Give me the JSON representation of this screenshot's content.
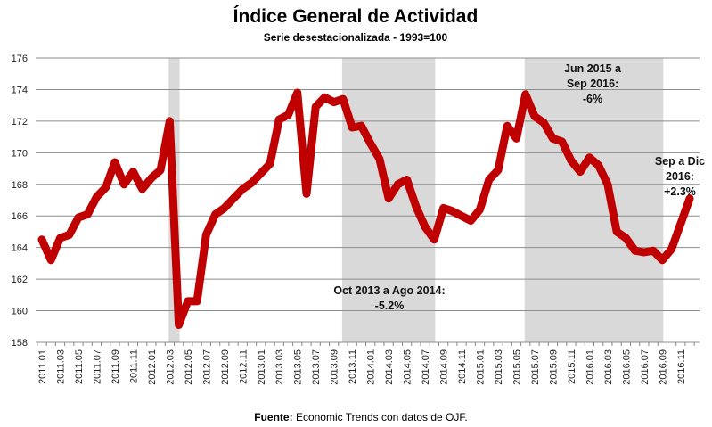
{
  "chart_data": {
    "type": "line",
    "title": "Índice General de Actividad",
    "subtitle": "Serie desestacionalizada - 1993=100",
    "source_label": "Fuente:",
    "source_text": " Economic Trends con datos de OJF.",
    "ylim": [
      158,
      176
    ],
    "yticks": [
      158,
      160,
      162,
      164,
      166,
      168,
      170,
      172,
      174,
      176
    ],
    "grid": true,
    "line_color": "#c00000",
    "shade_color": "#d9d9d9",
    "xtick_labels": [
      "2011.01",
      "2011.03",
      "2011.05",
      "2011.07",
      "2011.09",
      "2011.11",
      "2012.01",
      "2012.03",
      "2012.05",
      "2012.07",
      "2012.09",
      "2012.11",
      "2013.01",
      "2013.03",
      "2013.05",
      "2013.07",
      "2013.09",
      "2013.11",
      "2014.01",
      "2014.03",
      "2014.05",
      "2014.07",
      "2014.09",
      "2014.11",
      "2015.01",
      "2015.03",
      "2015.05",
      "2015.07",
      "2015.09",
      "2015.11",
      "2016.01",
      "2016.03",
      "2016.05",
      "2016.07",
      "2016.09",
      "2016.11"
    ],
    "start": "2011.01",
    "values": [
      164.5,
      163.2,
      164.6,
      164.8,
      165.9,
      166.1,
      167.2,
      167.8,
      169.4,
      168.0,
      168.8,
      167.7,
      168.4,
      168.9,
      172.0,
      159.1,
      160.6,
      160.6,
      164.8,
      166.1,
      166.5,
      167.1,
      167.7,
      168.1,
      168.7,
      169.3,
      172.1,
      172.4,
      173.8,
      167.4,
      172.9,
      173.5,
      173.2,
      173.4,
      171.6,
      171.7,
      170.6,
      169.6,
      167.1,
      168.0,
      168.3,
      166.6,
      165.3,
      164.5,
      166.5,
      166.3,
      166.0,
      165.7,
      166.4,
      168.3,
      168.9,
      171.7,
      170.9,
      173.7,
      172.3,
      171.9,
      170.9,
      170.7,
      169.5,
      168.8,
      169.7,
      169.2,
      168.0,
      165.0,
      164.6,
      163.8,
      163.7,
      163.8,
      163.2,
      163.9,
      165.5,
      167.1
    ],
    "shaded_periods": [
      {
        "from": "2012.03",
        "to": "2012.04"
      },
      {
        "from": "2013.10",
        "to": "2014.08"
      },
      {
        "from": "2015.06",
        "to": "2016.09"
      }
    ],
    "annotations": [
      {
        "lines": [
          "Oct 2013  a Ago 2014:",
          "-5.2%"
        ]
      },
      {
        "lines": [
          "Jun 2015 a",
          "Sep 2016:",
          "-6%"
        ]
      },
      {
        "lines": [
          "Sep a Dic",
          "2016:",
          "+2.3%"
        ]
      }
    ]
  }
}
